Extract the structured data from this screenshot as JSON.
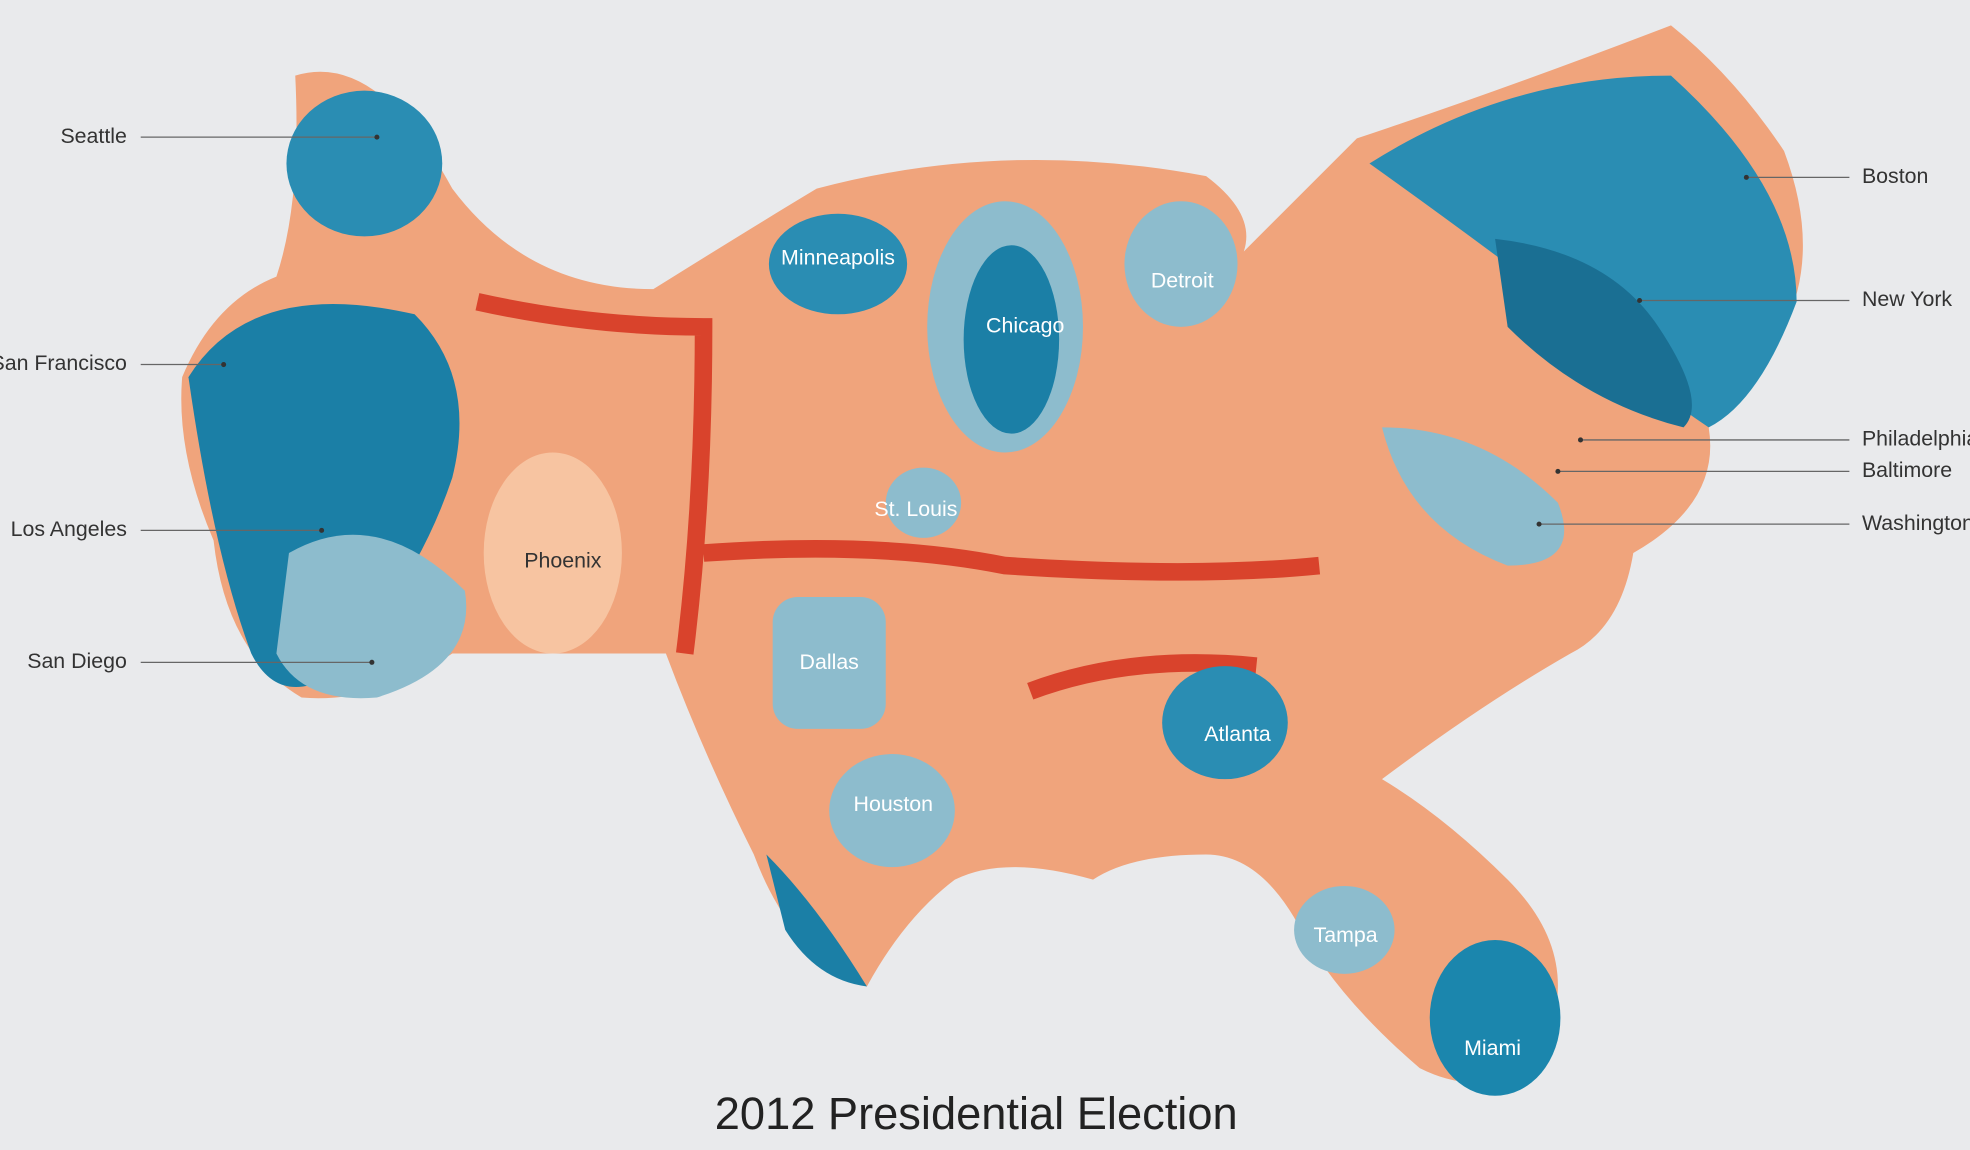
{
  "title": "2012 Presidential Election",
  "west_labels": [
    "Seattle",
    "San Francisco",
    "Los Angeles",
    "San Diego"
  ],
  "east_labels": [
    "Boston",
    "New York",
    "Philadelphia",
    "Baltimore",
    "Washington"
  ],
  "city_labels": [
    "Minneapolis",
    "Chicago",
    "Detroit",
    "St. Louis",
    "Phoenix",
    "Dallas",
    "Atlanta",
    "Houston",
    "Tampa",
    "Miami"
  ]
}
